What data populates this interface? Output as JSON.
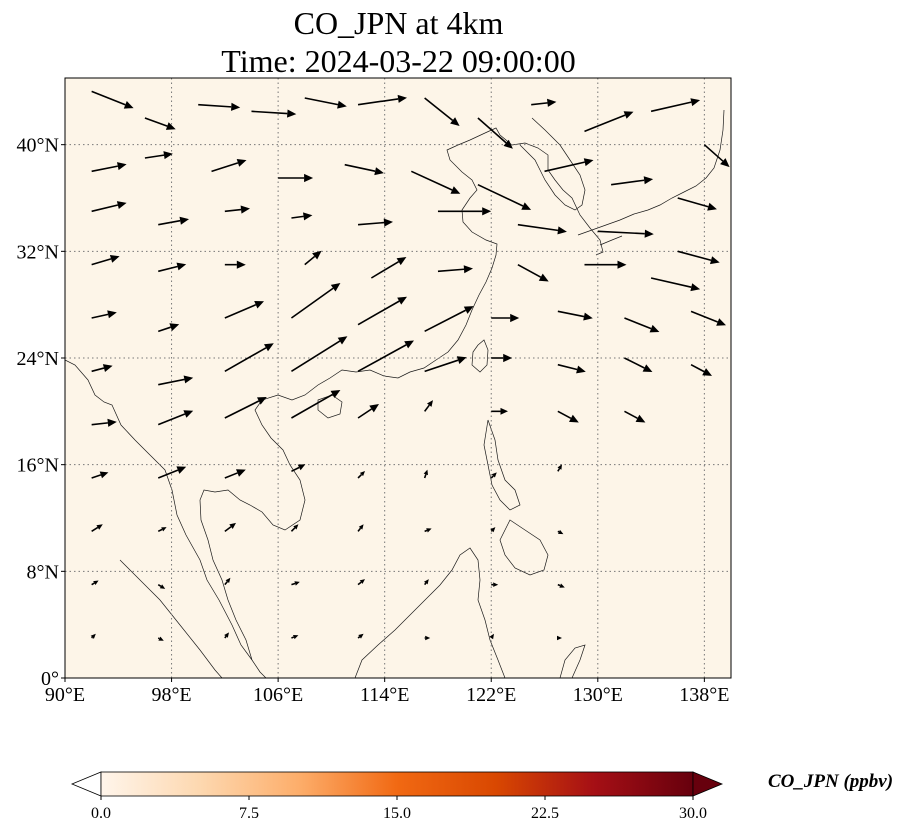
{
  "title": {
    "line1": "CO_JPN at 4km",
    "line2": "Time: 2024-03-22 09:00:00"
  },
  "map": {
    "lon_range": [
      90,
      140
    ],
    "lat_range": [
      0,
      45
    ],
    "gridlines": "dotted",
    "field_color": "#fdf5e8",
    "lon_ticks": [
      {
        "value": 90,
        "label": "90°E"
      },
      {
        "value": 98,
        "label": "98°E"
      },
      {
        "value": 106,
        "label": "106°E"
      },
      {
        "value": 114,
        "label": "114°E"
      },
      {
        "value": 122,
        "label": "122°E"
      },
      {
        "value": 130,
        "label": "130°E"
      },
      {
        "value": 138,
        "label": "138°E"
      }
    ],
    "lat_ticks": [
      {
        "value": 0,
        "label": "0°"
      },
      {
        "value": 8,
        "label": "8°N"
      },
      {
        "value": 16,
        "label": "16°N"
      },
      {
        "value": 24,
        "label": "24°N"
      },
      {
        "value": 32,
        "label": "32°N"
      },
      {
        "value": 40,
        "label": "40°N"
      }
    ],
    "wind_vectors": [
      {
        "lon": 92,
        "lat": 44,
        "u": 3.0,
        "v": -1.2
      },
      {
        "lon": 96,
        "lat": 42,
        "u": 2.2,
        "v": -0.8
      },
      {
        "lon": 100,
        "lat": 43,
        "u": 3.0,
        "v": -0.2
      },
      {
        "lon": 104,
        "lat": 42.5,
        "u": 3.2,
        "v": -0.2
      },
      {
        "lon": 108,
        "lat": 43.5,
        "u": 3.0,
        "v": -0.6
      },
      {
        "lon": 112,
        "lat": 43,
        "u": 3.5,
        "v": 0.5
      },
      {
        "lon": 117,
        "lat": 43.5,
        "u": 2.5,
        "v": -2.0
      },
      {
        "lon": 121,
        "lat": 42,
        "u": 2.5,
        "v": -2.2
      },
      {
        "lon": 125,
        "lat": 43,
        "u": 1.8,
        "v": 0.2
      },
      {
        "lon": 129,
        "lat": 41,
        "u": 3.5,
        "v": 1.4
      },
      {
        "lon": 134,
        "lat": 42.5,
        "u": 3.5,
        "v": 0.8
      },
      {
        "lon": 138,
        "lat": 40,
        "u": 1.8,
        "v": -1.6
      },
      {
        "lon": 92,
        "lat": 38,
        "u": 2.5,
        "v": 0.5
      },
      {
        "lon": 96,
        "lat": 39,
        "u": 2.0,
        "v": 0.3
      },
      {
        "lon": 101,
        "lat": 38,
        "u": 2.5,
        "v": 0.8
      },
      {
        "lon": 106,
        "lat": 37.5,
        "u": 2.5,
        "v": 0.0
      },
      {
        "lon": 111,
        "lat": 38.5,
        "u": 2.8,
        "v": -0.6
      },
      {
        "lon": 116,
        "lat": 38,
        "u": 3.5,
        "v": -1.6
      },
      {
        "lon": 121,
        "lat": 37,
        "u": 3.8,
        "v": -1.8
      },
      {
        "lon": 126,
        "lat": 38,
        "u": 3.5,
        "v": 0.8
      },
      {
        "lon": 131,
        "lat": 37,
        "u": 3.0,
        "v": 0.4
      },
      {
        "lon": 136,
        "lat": 36,
        "u": 2.8,
        "v": -0.8
      },
      {
        "lon": 92,
        "lat": 35,
        "u": 2.5,
        "v": 0.6
      },
      {
        "lon": 97,
        "lat": 34,
        "u": 2.2,
        "v": 0.4
      },
      {
        "lon": 102,
        "lat": 35,
        "u": 1.8,
        "v": 0.2
      },
      {
        "lon": 107,
        "lat": 34.5,
        "u": 1.5,
        "v": 0.2
      },
      {
        "lon": 112,
        "lat": 34,
        "u": 2.5,
        "v": 0.2
      },
      {
        "lon": 118,
        "lat": 35,
        "u": 3.8,
        "v": 0.0
      },
      {
        "lon": 124,
        "lat": 34,
        "u": 3.5,
        "v": -0.5
      },
      {
        "lon": 130,
        "lat": 33.5,
        "u": 4.0,
        "v": -0.2
      },
      {
        "lon": 136,
        "lat": 32,
        "u": 3.0,
        "v": -0.8
      },
      {
        "lon": 92,
        "lat": 31,
        "u": 2.0,
        "v": 0.6
      },
      {
        "lon": 97,
        "lat": 30.5,
        "u": 2.0,
        "v": 0.5
      },
      {
        "lon": 102,
        "lat": 31,
        "u": 1.5,
        "v": 0.0
      },
      {
        "lon": 108,
        "lat": 31,
        "u": 1.2,
        "v": 1.0
      },
      {
        "lon": 113,
        "lat": 30,
        "u": 2.5,
        "v": 1.5
      },
      {
        "lon": 118,
        "lat": 30.5,
        "u": 2.5,
        "v": 0.2
      },
      {
        "lon": 124,
        "lat": 31,
        "u": 2.2,
        "v": -1.2
      },
      {
        "lon": 129,
        "lat": 31,
        "u": 3.0,
        "v": 0.0
      },
      {
        "lon": 134,
        "lat": 30,
        "u": 3.5,
        "v": -0.8
      },
      {
        "lon": 92,
        "lat": 27,
        "u": 1.8,
        "v": 0.4
      },
      {
        "lon": 97,
        "lat": 26,
        "u": 1.5,
        "v": 0.5
      },
      {
        "lon": 102,
        "lat": 27,
        "u": 2.8,
        "v": 1.2
      },
      {
        "lon": 107,
        "lat": 27,
        "u": 3.5,
        "v": 2.5
      },
      {
        "lon": 112,
        "lat": 26.5,
        "u": 3.5,
        "v": 2.0
      },
      {
        "lon": 117,
        "lat": 26,
        "u": 3.5,
        "v": 1.8
      },
      {
        "lon": 122,
        "lat": 27,
        "u": 2.0,
        "v": 0.0
      },
      {
        "lon": 127,
        "lat": 27.5,
        "u": 2.5,
        "v": -0.5
      },
      {
        "lon": 132,
        "lat": 27,
        "u": 2.5,
        "v": -1.0
      },
      {
        "lon": 137,
        "lat": 27.5,
        "u": 2.5,
        "v": -1.0
      },
      {
        "lon": 92,
        "lat": 23,
        "u": 1.5,
        "v": 0.4
      },
      {
        "lon": 97,
        "lat": 22,
        "u": 2.5,
        "v": 0.5
      },
      {
        "lon": 102,
        "lat": 23,
        "u": 3.5,
        "v": 2.0
      },
      {
        "lon": 107,
        "lat": 23,
        "u": 4.0,
        "v": 2.5
      },
      {
        "lon": 112,
        "lat": 23,
        "u": 4.0,
        "v": 2.2
      },
      {
        "lon": 117,
        "lat": 23,
        "u": 3.0,
        "v": 1.0
      },
      {
        "lon": 122,
        "lat": 24,
        "u": 1.5,
        "v": 0.0
      },
      {
        "lon": 127,
        "lat": 23.5,
        "u": 2.0,
        "v": -0.5
      },
      {
        "lon": 132,
        "lat": 24,
        "u": 2.0,
        "v": -1.0
      },
      {
        "lon": 137,
        "lat": 23.5,
        "u": 1.5,
        "v": -0.8
      },
      {
        "lon": 92,
        "lat": 19,
        "u": 1.8,
        "v": 0.2
      },
      {
        "lon": 97,
        "lat": 19,
        "u": 2.5,
        "v": 1.0
      },
      {
        "lon": 102,
        "lat": 19.5,
        "u": 3.0,
        "v": 1.5
      },
      {
        "lon": 107,
        "lat": 19.5,
        "u": 3.5,
        "v": 2.0
      },
      {
        "lon": 112,
        "lat": 19.5,
        "u": 1.5,
        "v": 1.0
      },
      {
        "lon": 117,
        "lat": 20,
        "u": 0.6,
        "v": 0.8
      },
      {
        "lon": 122,
        "lat": 20,
        "u": 1.2,
        "v": 0.0
      },
      {
        "lon": 127,
        "lat": 20,
        "u": 1.5,
        "v": -0.8
      },
      {
        "lon": 132,
        "lat": 20,
        "u": 1.5,
        "v": -0.8
      },
      {
        "lon": 92,
        "lat": 15,
        "u": 1.2,
        "v": 0.4
      },
      {
        "lon": 97,
        "lat": 15,
        "u": 2.0,
        "v": 0.8
      },
      {
        "lon": 102,
        "lat": 15,
        "u": 1.5,
        "v": 0.6
      },
      {
        "lon": 107,
        "lat": 15.5,
        "u": 1.0,
        "v": 0.5
      },
      {
        "lon": 112,
        "lat": 15,
        "u": 0.5,
        "v": 0.5
      },
      {
        "lon": 117,
        "lat": 15,
        "u": 0.2,
        "v": 0.6
      },
      {
        "lon": 122,
        "lat": 15,
        "u": 0.4,
        "v": 0.4
      },
      {
        "lon": 127,
        "lat": 15.5,
        "u": 0.3,
        "v": 0.5
      },
      {
        "lon": 92,
        "lat": 11,
        "u": 0.8,
        "v": 0.5
      },
      {
        "lon": 97,
        "lat": 11,
        "u": 0.6,
        "v": 0.3
      },
      {
        "lon": 102,
        "lat": 11,
        "u": 0.8,
        "v": 0.6
      },
      {
        "lon": 107,
        "lat": 11,
        "u": 0.5,
        "v": 0.5
      },
      {
        "lon": 112,
        "lat": 11,
        "u": 0.4,
        "v": 0.5
      },
      {
        "lon": 117,
        "lat": 11,
        "u": 0.5,
        "v": 0.2
      },
      {
        "lon": 122,
        "lat": 11,
        "u": 0.3,
        "v": 0.3
      },
      {
        "lon": 127,
        "lat": 11,
        "u": 0.4,
        "v": -0.2
      },
      {
        "lon": 92,
        "lat": 7,
        "u": 0.5,
        "v": 0.3
      },
      {
        "lon": 97,
        "lat": 7,
        "u": 0.5,
        "v": -0.3
      },
      {
        "lon": 102,
        "lat": 7,
        "u": 0.4,
        "v": 0.5
      },
      {
        "lon": 107,
        "lat": 7,
        "u": 0.6,
        "v": 0.2
      },
      {
        "lon": 112,
        "lat": 7,
        "u": 0.5,
        "v": 0.4
      },
      {
        "lon": 117,
        "lat": 7,
        "u": 0.3,
        "v": 0.4
      },
      {
        "lon": 122,
        "lat": 7,
        "u": 0.5,
        "v": 0.0
      },
      {
        "lon": 127,
        "lat": 7,
        "u": 0.5,
        "v": -0.2
      },
      {
        "lon": 92,
        "lat": 3,
        "u": 0.3,
        "v": 0.3
      },
      {
        "lon": 97,
        "lat": 3,
        "u": 0.4,
        "v": -0.2
      },
      {
        "lon": 102,
        "lat": 3,
        "u": 0.3,
        "v": 0.4
      },
      {
        "lon": 107,
        "lat": 3,
        "u": 0.5,
        "v": 0.2
      },
      {
        "lon": 112,
        "lat": 3,
        "u": 0.4,
        "v": 0.3
      },
      {
        "lon": 117,
        "lat": 3,
        "u": 0.4,
        "v": 0.0
      },
      {
        "lon": 122,
        "lat": 3,
        "u": 0.2,
        "v": 0.3
      },
      {
        "lon": 127,
        "lat": 3,
        "u": 0.3,
        "v": 0.0
      }
    ]
  },
  "colorbar": {
    "title": "CO_JPN (ppbv)",
    "range": [
      0.0,
      30.0
    ],
    "extend": "both",
    "ticks": [
      {
        "value": 0.0,
        "label": "0.0"
      },
      {
        "value": 7.5,
        "label": "7.5"
      },
      {
        "value": 15.0,
        "label": "15.0"
      },
      {
        "value": 22.5,
        "label": "22.5"
      },
      {
        "value": 30.0,
        "label": "30.0"
      }
    ],
    "colors": [
      "#fff5eb",
      "#fdd8b0",
      "#fdae6b",
      "#f16913",
      "#d94801",
      "#a50f15",
      "#67000d"
    ],
    "under_color": "#ffffff",
    "over_color": "#67000d"
  }
}
